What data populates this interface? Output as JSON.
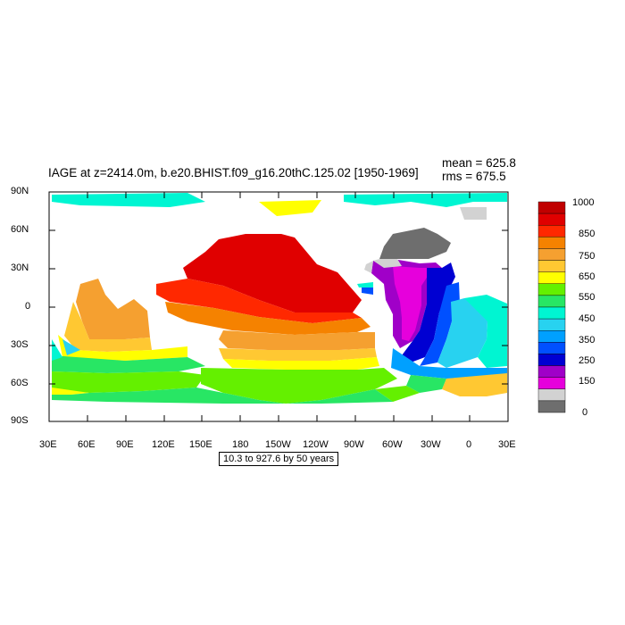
{
  "header": {
    "title": "IAGE at z=2414.0m, b.e20.BHIST.f09_g16.20thC.125.02 [1950-1969]",
    "mean": "mean = 625.8",
    "rms": "rms = 675.5"
  },
  "axes": {
    "lat_labels": [
      "90N",
      "60N",
      "30N",
      "0",
      "30S",
      "60S",
      "90S"
    ],
    "lon_labels": [
      "30E",
      "60E",
      "90E",
      "120E",
      "150E",
      "180",
      "150W",
      "120W",
      "90W",
      "60W",
      "30W",
      "0",
      "30E"
    ]
  },
  "range_label": "10.3 to 927.6 by 50 years",
  "colorbar": {
    "labels": [
      "1000",
      "850",
      "750",
      "650",
      "550",
      "450",
      "350",
      "250",
      "150",
      "0"
    ],
    "colors": [
      "#c00000",
      "#e00000",
      "#ff2800",
      "#f58200",
      "#f5a030",
      "#ffc832",
      "#ffff00",
      "#64f000",
      "#28e664",
      "#00f5d2",
      "#28d2f0",
      "#00a0ff",
      "#0050ff",
      "#0000d2",
      "#a000c8",
      "#e600dc",
      "#d2d2d2",
      "#6e6e6e"
    ]
  }
}
